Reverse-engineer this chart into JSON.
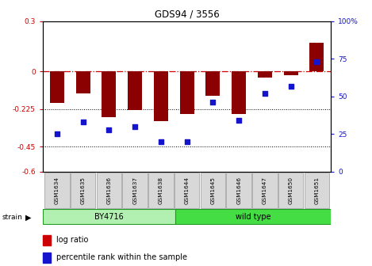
{
  "title": "GDS94 / 3556",
  "samples": [
    "GSM1634",
    "GSM1635",
    "GSM1636",
    "GSM1637",
    "GSM1638",
    "GSM1644",
    "GSM1645",
    "GSM1646",
    "GSM1647",
    "GSM1650",
    "GSM1651"
  ],
  "log_ratio": [
    -0.19,
    -0.13,
    -0.275,
    -0.23,
    -0.3,
    -0.255,
    -0.145,
    -0.255,
    -0.035,
    -0.025,
    0.17
  ],
  "percentile_rank": [
    25,
    33,
    28,
    30,
    20,
    20,
    46,
    34,
    52,
    57,
    73
  ],
  "bar_color": "#8B0000",
  "dot_color": "#1414cc",
  "zero_line_color": "#cc0000",
  "ylim_left": [
    -0.6,
    0.3
  ],
  "ylim_right": [
    0,
    100
  ],
  "by4716_color": "#b2f0b2",
  "wildtype_color": "#44dd44",
  "group_border_color": "#229922"
}
